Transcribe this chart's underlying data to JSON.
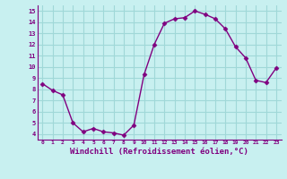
{
  "x": [
    0,
    1,
    2,
    3,
    4,
    5,
    6,
    7,
    8,
    9,
    10,
    11,
    12,
    13,
    14,
    15,
    16,
    17,
    18,
    19,
    20,
    21,
    22,
    23
  ],
  "y": [
    8.5,
    7.9,
    7.5,
    5.0,
    4.2,
    4.5,
    4.2,
    4.1,
    3.9,
    4.8,
    9.3,
    12.0,
    13.9,
    14.3,
    14.4,
    15.0,
    14.7,
    14.3,
    13.4,
    11.8,
    10.8,
    8.8,
    8.6,
    9.9
  ],
  "line_color": "#800080",
  "marker": "D",
  "markersize": 2.5,
  "linewidth": 1.0,
  "xlabel": "Windchill (Refroidissement éolien,°C)",
  "xlabel_fontsize": 6.5,
  "ylabel_ticks": [
    4,
    5,
    6,
    7,
    8,
    9,
    10,
    11,
    12,
    13,
    14,
    15
  ],
  "xtick_labels": [
    "0",
    "1",
    "2",
    "3",
    "4",
    "5",
    "6",
    "7",
    "8",
    "9",
    "10",
    "11",
    "12",
    "13",
    "14",
    "15",
    "16",
    "17",
    "18",
    "19",
    "20",
    "21",
    "22",
    "23"
  ],
  "xlim": [
    -0.5,
    23.5
  ],
  "ylim": [
    3.5,
    15.5
  ],
  "bg_color": "#c8f0f0",
  "grid_color": "#a0d8d8",
  "tick_color": "#800080",
  "label_color": "#800080"
}
